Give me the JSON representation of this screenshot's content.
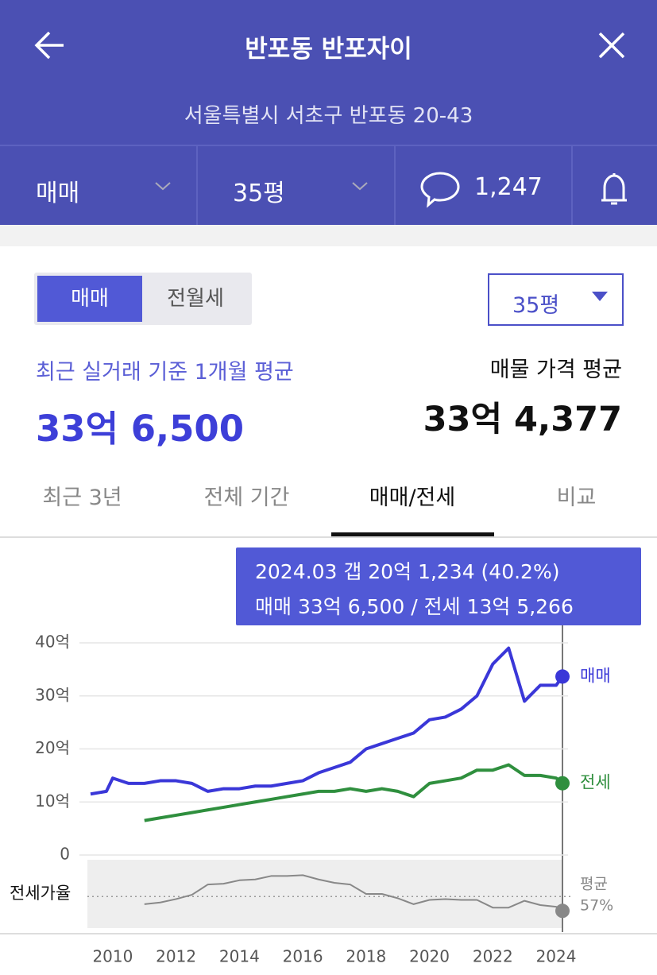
{
  "header": {
    "title": "반포동 반포자이",
    "address": "서울특별시 서초구 반포동 20-43"
  },
  "filters": {
    "deal": "매매",
    "size": "35평",
    "comments": "1,247"
  },
  "toggle": {
    "options": [
      "매매",
      "전월세"
    ],
    "size": "35평"
  },
  "summary": {
    "recent_label": "최근 실거래 기준 1개월 평균",
    "recent_price": "33억 6,500",
    "listing_label": "매물 가격 평균",
    "listing_price": "33억 4,377"
  },
  "period_tabs": [
    "최근 3년",
    "전체 기간",
    "매매/전세",
    "비교"
  ],
  "tooltip": [
    "2024.03  갭 20억 1,234 (40.2%)",
    "매매 33억 6,500 / 전세 13억 5,266"
  ],
  "chart_data": [
    {
      "type": "line",
      "x": [
        2009.3,
        2009.8,
        2010.0,
        2010.5,
        2011.0,
        2011.5,
        2012.0,
        2012.5,
        2013.0,
        2013.5,
        2014.0,
        2014.5,
        2015.0,
        2015.5,
        2016.0,
        2016.5,
        2017.0,
        2017.5,
        2018.0,
        2018.5,
        2019.0,
        2019.5,
        2020.0,
        2020.5,
        2021.0,
        2021.5,
        2022.0,
        2022.5,
        2023.0,
        2023.5,
        2024.0,
        2024.2
      ],
      "series": [
        {
          "name": "매매",
          "color": "#3a37d8",
          "values": [
            11.5,
            12,
            14.5,
            13.5,
            13.5,
            14,
            14,
            13.5,
            12,
            12.5,
            12.5,
            13,
            13,
            13.5,
            14,
            15.5,
            16.5,
            17.5,
            20,
            21,
            22,
            23,
            25.5,
            26,
            27.5,
            30,
            36,
            39,
            29,
            32,
            32,
            33.65
          ]
        },
        {
          "name": "전세",
          "color": "#2f8f3e",
          "values": [
            null,
            null,
            null,
            null,
            6.5,
            7,
            7.5,
            8,
            8.5,
            9,
            9.5,
            10,
            10.5,
            11,
            11.5,
            12,
            12,
            12.5,
            12,
            12.5,
            12,
            11,
            13.5,
            14,
            14.5,
            16,
            16,
            17,
            15,
            15,
            14.5,
            13.5266
          ]
        }
      ],
      "xlim": [
        2009.2,
        2024.3
      ],
      "xticks": [
        2010,
        2012,
        2014,
        2016,
        2018,
        2020,
        2022,
        2024
      ],
      "ylim": [
        0,
        40
      ],
      "yticks": [
        0,
        {
          "value": 10,
          "label": "10억"
        },
        {
          "value": 20,
          "label": "20억"
        },
        {
          "value": 30,
          "label": "30억"
        },
        {
          "value": 40,
          "label": "40억"
        }
      ],
      "grid": true
    },
    {
      "type": "line",
      "label": "전세가율",
      "x": [
        2009.3,
        2009.8,
        2010.0,
        2010.5,
        2011.0,
        2011.5,
        2012.0,
        2012.5,
        2013.0,
        2013.5,
        2014.0,
        2014.5,
        2015.0,
        2015.5,
        2016.0,
        2016.5,
        2017.0,
        2017.5,
        2018.0,
        2018.5,
        2019.0,
        2019.5,
        2020.0,
        2020.5,
        2021.0,
        2021.5,
        2022.0,
        2022.5,
        2023.0,
        2023.5,
        2024.0,
        2024.2
      ],
      "series": [
        {
          "color": "#888888",
          "values": [
            null,
            null,
            null,
            null,
            48,
            50,
            54,
            59,
            71,
            72,
            76,
            77,
            81,
            81,
            82,
            77,
            73,
            71,
            60,
            60,
            55,
            48,
            53,
            54,
            53,
            53,
            44,
            44,
            52,
            47,
            45,
            40.2
          ]
        }
      ],
      "xlim": [
        2009.2,
        2024.3
      ],
      "ylim": [
        20,
        100
      ],
      "average_title": "평균",
      "average": {
        "value": 57,
        "label": "57%"
      }
    }
  ]
}
